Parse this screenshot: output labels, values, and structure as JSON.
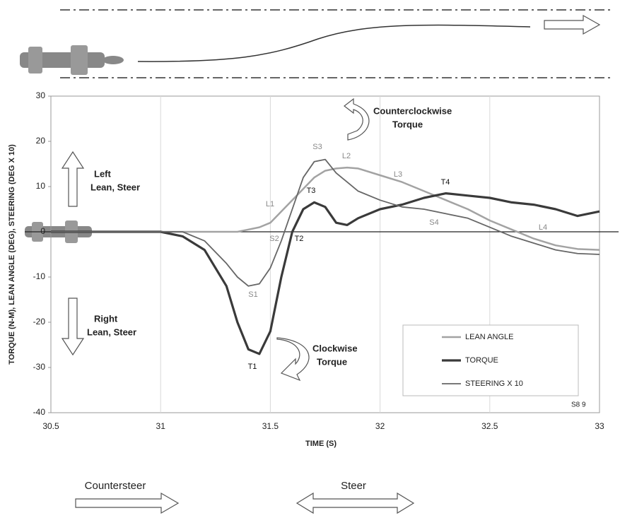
{
  "chart_data": {
    "type": "line",
    "x_label": "TIME (S)",
    "y_label": "TORQUE (N-M), LEAN ANGLE (DEG), STEERING (DEG X 10)",
    "x": [
      30.5,
      31,
      31.1,
      31.2,
      31.3,
      31.35,
      31.4,
      31.45,
      31.5,
      31.55,
      31.6,
      31.65,
      31.7,
      31.75,
      31.8,
      31.85,
      31.9,
      32,
      32.1,
      32.2,
      32.3,
      32.4,
      32.5,
      32.6,
      32.7,
      32.8,
      32.9,
      33
    ],
    "series": [
      {
        "name": "LEAN ANGLE",
        "color": "#a3a3a3",
        "values": [
          0,
          0,
          0,
          0,
          0,
          0,
          0.5,
          1,
          2,
          4.5,
          7,
          9.5,
          12,
          13.5,
          14,
          14.2,
          14,
          12.5,
          11,
          9,
          7,
          5,
          2.5,
          0.5,
          -1.5,
          -3,
          -3.8,
          -4
        ]
      },
      {
        "name": "TORQUE",
        "color": "#3a3a3a",
        "values": [
          0,
          0,
          -1,
          -4,
          -12,
          -20,
          -26,
          -27,
          -22,
          -10,
          0,
          5,
          6.5,
          5.5,
          2,
          1.5,
          3,
          5,
          6,
          7.5,
          8.5,
          8,
          7.5,
          6.5,
          6,
          5,
          3.5,
          4.5
        ]
      },
      {
        "name": "STEERING X 10",
        "color": "#666666",
        "values": [
          0,
          0,
          0,
          -2,
          -7,
          -10,
          -12,
          -11.5,
          -8,
          -2,
          5,
          12,
          15.5,
          16,
          13,
          11,
          9,
          7,
          5.5,
          5,
          4,
          3,
          1,
          -1,
          -2.5,
          -4,
          -4.8,
          -5
        ]
      }
    ],
    "xlim": [
      30.5,
      33
    ],
    "xticks": [
      30.5,
      31,
      31.5,
      32,
      32.5,
      33
    ],
    "ylim": [
      -40,
      30
    ],
    "yticks": [
      -40,
      -30,
      -20,
      -10,
      0,
      10,
      20,
      30
    ],
    "vertical_grid": true,
    "legend": "lower right",
    "annotations": [
      "L1",
      "L2",
      "L3",
      "L4",
      "S1",
      "S2",
      "S3",
      "S4",
      "T1",
      "T2",
      "T3",
      "T4"
    ],
    "left_note": [
      "Left",
      "Lean, Steer"
    ],
    "right_note": [
      "Right",
      "Lean, Steer"
    ],
    "ccw_note": [
      "Counterclockwise",
      "Torque"
    ],
    "cw_note": [
      "Clockwise",
      "Torque"
    ],
    "figure_code": "S8 9"
  },
  "phases": [
    "Countersteer",
    "Steer"
  ]
}
